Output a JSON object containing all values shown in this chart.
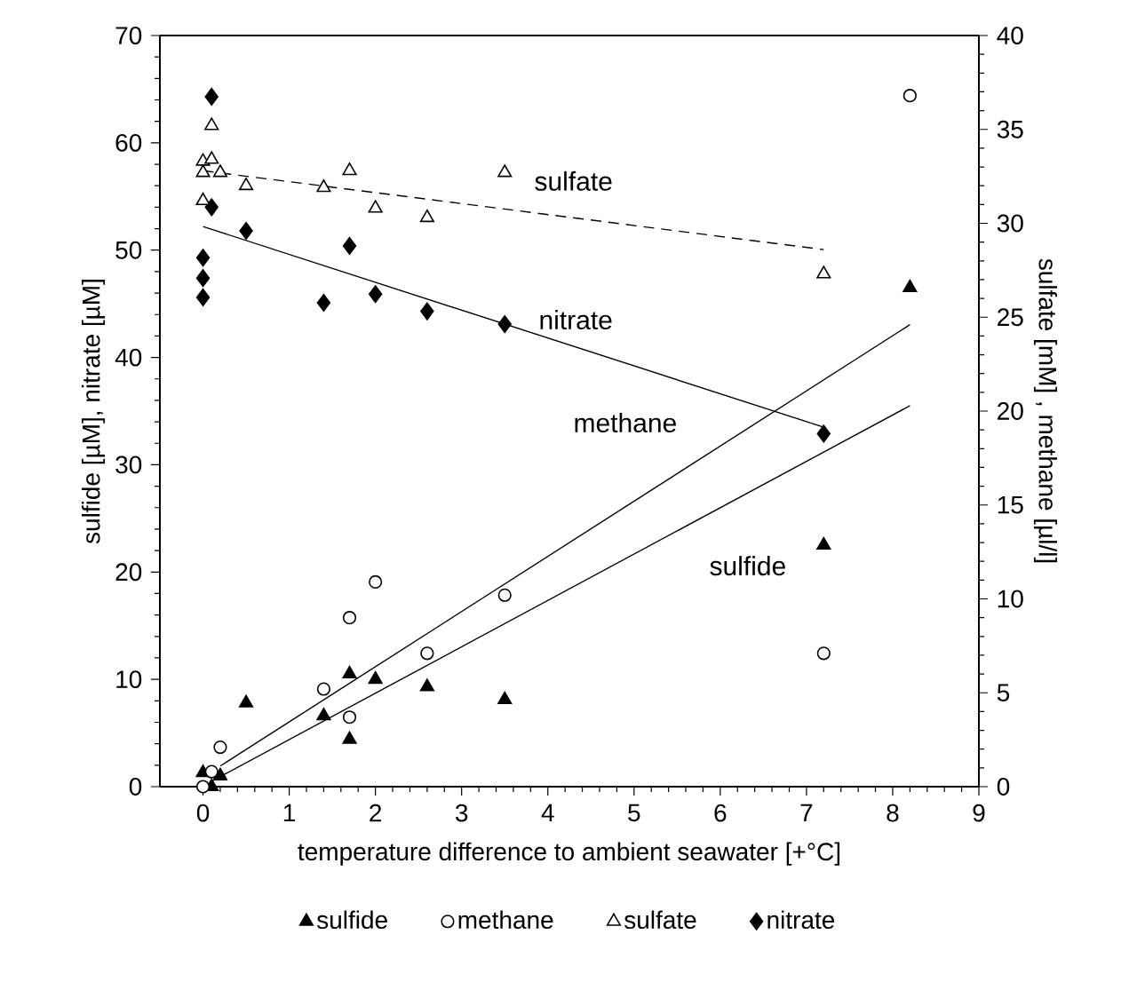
{
  "chart_data": {
    "type": "scatter",
    "xlabel": "temperature difference to ambient seawater [+°C]",
    "ylabel": "sulfide [µM], nitrate [µM]",
    "y2label": "sulfate [mM] , methane   [µl/l]",
    "xlim": [
      -0.5,
      9
    ],
    "xticks": [
      0,
      1,
      2,
      3,
      4,
      5,
      6,
      7,
      8,
      9
    ],
    "ylim": [
      0,
      70
    ],
    "yticks": [
      0,
      10,
      20,
      30,
      40,
      50,
      60,
      70
    ],
    "y2lim": [
      0,
      40
    ],
    "y2ticks": [
      0,
      5,
      10,
      15,
      20,
      25,
      30,
      35,
      40
    ],
    "grid": false,
    "legend": "bottom",
    "series": [
      {
        "name": "sulfide",
        "marker": "triangle",
        "color": "#000000",
        "x": [
          0,
          0.1,
          0.2,
          0.5,
          1.4,
          1.7,
          1.7,
          2.0,
          2.6,
          3.5,
          7.2,
          8.2
        ],
        "values": [
          1.3,
          0,
          1.0,
          7.8,
          6.6,
          10.5,
          4.4,
          10.0,
          9.3,
          8.1,
          22.5,
          46.5
        ]
      },
      {
        "name": "methane",
        "axis": "y2",
        "marker": "circle",
        "color": "#000000",
        "x": [
          0,
          0.1,
          0.2,
          1.4,
          1.7,
          1.7,
          2.0,
          2.6,
          3.5,
          7.2,
          8.2
        ],
        "values": [
          0,
          0.8,
          2.1,
          5.2,
          9.0,
          3.7,
          10.9,
          7.1,
          10.2,
          7.1,
          36.8
        ]
      },
      {
        "name": "sulfate",
        "axis": "y2",
        "marker": "triangle",
        "color": "#000000",
        "x": [
          0,
          0,
          0,
          0.1,
          0.1,
          0.2,
          0.5,
          1.4,
          1.7,
          2.0,
          2.6,
          3.5,
          7.2
        ],
        "values": [
          33.3,
          32.7,
          31.2,
          35.2,
          33.4,
          32.7,
          32.0,
          31.9,
          32.8,
          30.8,
          30.3,
          32.7,
          27.3
        ]
      },
      {
        "name": "nitrate",
        "marker": "diamond",
        "color": "#000000",
        "x": [
          0,
          0,
          0,
          0.1,
          0.1,
          0.5,
          1.4,
          1.7,
          2.0,
          2.6,
          3.5,
          7.2
        ],
        "values": [
          49.3,
          47.4,
          45.6,
          64.3,
          54.0,
          51.8,
          45.1,
          50.4,
          45.9,
          44.3,
          43.1,
          32.9
        ]
      },
      {
        "type": "line",
        "line_style": "solid",
        "color": "#000000",
        "x": [
          0.1,
          8.2
        ],
        "values": [
          0.5,
          35.5
        ]
      },
      {
        "type": "line",
        "axis": "y2",
        "line_style": "solid",
        "color": "#000000",
        "x": [
          0.2,
          8.2
        ],
        "values": [
          1.1,
          24.6
        ]
      },
      {
        "type": "line",
        "axis": "y2",
        "line_style": "dashed",
        "color": "#000000",
        "x": [
          0,
          7.2
        ],
        "values": [
          32.8,
          28.6
        ]
      },
      {
        "type": "line",
        "line_style": "solid",
        "color": "#000000",
        "x": [
          0,
          7.2
        ],
        "values": [
          52.2,
          33.5
        ]
      }
    ],
    "annotations": [
      "sulfide",
      "methane",
      "sulfate",
      "nitrate"
    ]
  }
}
